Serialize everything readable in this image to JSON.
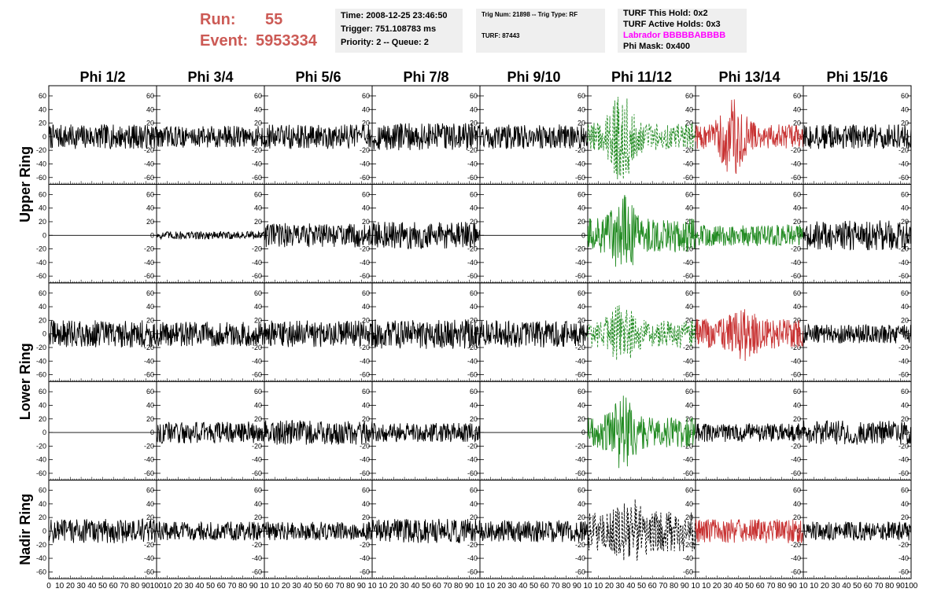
{
  "header": {
    "run_label": "Run:",
    "run_value": "55",
    "event_label": "Event:",
    "event_value": "5953334",
    "run_color": "#cc5a55"
  },
  "info_boxes": {
    "time": "Time: 2008-12-25 23:46:50",
    "trigger": "Trigger: 751.108783 ms",
    "priority": "Priority: 2 -- Queue: 2",
    "trig_num": "Trig Num: 21898 -- Trig Type: RF",
    "turf": "TURF: 87443",
    "turf_this_hold": "TURF This Hold: 0x2",
    "turf_active_holds": "TURF Active Holds: 0x3",
    "labrador": "Labrador BBBBBABBBB",
    "labrador_color": "#ff00ff",
    "phi_mask": "Phi Mask: 0x400"
  },
  "chart_data": {
    "type": "line",
    "column_titles": [
      "Phi 1/2",
      "Phi 3/4",
      "Phi 5/6",
      "Phi 7/8",
      "Phi 9/10",
      "Phi 11/12",
      "Phi 13/14",
      "Phi 15/16"
    ],
    "row_titles": [
      "Upper Ring",
      "Lower Ring",
      "Nadir Ring"
    ],
    "ylim": [
      -70,
      75
    ],
    "xlim": [
      0,
      100
    ],
    "y_tick_labels": [
      "60",
      "40",
      "20",
      "0",
      "-20",
      "-40",
      "-60"
    ],
    "x_tick_labels_first": [
      "0",
      "10",
      "20",
      "30",
      "40",
      "50",
      "60",
      "70",
      "80",
      "90",
      "100"
    ],
    "x_tick_labels_other": [
      "10",
      "20",
      "30",
      "40",
      "50",
      "60",
      "70",
      "80",
      "90",
      "10"
    ],
    "x_tick_labels_last": [
      "10",
      "20",
      "30",
      "40",
      "50",
      "60",
      "70",
      "80",
      "90",
      "100"
    ],
    "colors": {
      "normal": "#000000",
      "triggered": "#228b22",
      "hold": "#c83232"
    },
    "panels": [
      {
        "row": 0,
        "col": 0,
        "amplitude": 18,
        "style": "normal",
        "flat": false,
        "dashed": false
      },
      {
        "row": 0,
        "col": 1,
        "amplitude": 16,
        "style": "normal",
        "flat": false,
        "dashed": false
      },
      {
        "row": 0,
        "col": 2,
        "amplitude": 18,
        "style": "normal",
        "flat": false,
        "dashed": false
      },
      {
        "row": 0,
        "col": 3,
        "amplitude": 20,
        "style": "normal",
        "flat": false,
        "dashed": false
      },
      {
        "row": 0,
        "col": 4,
        "amplitude": 18,
        "style": "normal",
        "flat": false,
        "dashed": false
      },
      {
        "row": 0,
        "col": 5,
        "amplitude": 20,
        "style": "triggered",
        "flat": false,
        "dashed": true,
        "burst_center": 0.32,
        "burst_amp": 70
      },
      {
        "row": 0,
        "col": 6,
        "amplitude": 18,
        "style": "hold",
        "flat": false,
        "dashed": false,
        "burst_center": 0.35,
        "burst_amp": 60
      },
      {
        "row": 0,
        "col": 7,
        "amplitude": 18,
        "style": "normal",
        "flat": false,
        "dashed": false
      },
      {
        "row": 1,
        "col": 0,
        "amplitude": 0,
        "style": "normal",
        "flat": true,
        "dashed": false
      },
      {
        "row": 1,
        "col": 1,
        "amplitude": 6,
        "style": "normal",
        "flat": false,
        "dashed": false
      },
      {
        "row": 1,
        "col": 2,
        "amplitude": 18,
        "style": "normal",
        "flat": false,
        "dashed": false
      },
      {
        "row": 1,
        "col": 3,
        "amplitude": 20,
        "style": "normal",
        "flat": false,
        "dashed": false
      },
      {
        "row": 1,
        "col": 4,
        "amplitude": 0,
        "style": "normal",
        "flat": true,
        "dashed": false
      },
      {
        "row": 1,
        "col": 5,
        "amplitude": 25,
        "style": "triggered",
        "flat": false,
        "dashed": false,
        "burst_center": 0.33,
        "burst_amp": 60
      },
      {
        "row": 1,
        "col": 6,
        "amplitude": 16,
        "style": "triggered",
        "flat": false,
        "dashed": false
      },
      {
        "row": 1,
        "col": 7,
        "amplitude": 22,
        "style": "normal",
        "flat": false,
        "dashed": false
      },
      {
        "row": 2,
        "col": 0,
        "amplitude": 20,
        "style": "normal",
        "flat": false,
        "dashed": false
      },
      {
        "row": 2,
        "col": 1,
        "amplitude": 18,
        "style": "normal",
        "flat": false,
        "dashed": false
      },
      {
        "row": 2,
        "col": 2,
        "amplitude": 20,
        "style": "normal",
        "flat": false,
        "dashed": false
      },
      {
        "row": 2,
        "col": 3,
        "amplitude": 22,
        "style": "normal",
        "flat": false,
        "dashed": false
      },
      {
        "row": 2,
        "col": 4,
        "amplitude": 20,
        "style": "normal",
        "flat": false,
        "dashed": false
      },
      {
        "row": 2,
        "col": 5,
        "amplitude": 20,
        "style": "triggered",
        "flat": false,
        "dashed": true,
        "burst_center": 0.32,
        "burst_amp": 45
      },
      {
        "row": 2,
        "col": 6,
        "amplitude": 22,
        "style": "hold",
        "flat": false,
        "dashed": false,
        "burst_center": 0.45,
        "burst_amp": 40
      },
      {
        "row": 2,
        "col": 7,
        "amplitude": 14,
        "style": "normal",
        "flat": false,
        "dashed": false
      },
      {
        "row": 3,
        "col": 0,
        "amplitude": 0,
        "style": "normal",
        "flat": true,
        "dashed": false
      },
      {
        "row": 3,
        "col": 1,
        "amplitude": 16,
        "style": "normal",
        "flat": false,
        "dashed": false
      },
      {
        "row": 3,
        "col": 2,
        "amplitude": 18,
        "style": "normal",
        "flat": false,
        "dashed": false
      },
      {
        "row": 3,
        "col": 3,
        "amplitude": 14,
        "style": "normal",
        "flat": false,
        "dashed": false
      },
      {
        "row": 3,
        "col": 4,
        "amplitude": 0,
        "style": "normal",
        "flat": true,
        "dashed": false
      },
      {
        "row": 3,
        "col": 5,
        "amplitude": 22,
        "style": "triggered",
        "flat": false,
        "dashed": false,
        "burst_center": 0.32,
        "burst_amp": 55
      },
      {
        "row": 3,
        "col": 6,
        "amplitude": 14,
        "style": "normal",
        "flat": false,
        "dashed": false
      },
      {
        "row": 3,
        "col": 7,
        "amplitude": 18,
        "style": "normal",
        "flat": false,
        "dashed": false
      },
      {
        "row": 4,
        "col": 0,
        "amplitude": 18,
        "style": "normal",
        "flat": false,
        "dashed": false
      },
      {
        "row": 4,
        "col": 1,
        "amplitude": 14,
        "style": "normal",
        "flat": false,
        "dashed": false
      },
      {
        "row": 4,
        "col": 2,
        "amplitude": 14,
        "style": "normal",
        "flat": false,
        "dashed": false
      },
      {
        "row": 4,
        "col": 3,
        "amplitude": 18,
        "style": "normal",
        "flat": false,
        "dashed": false
      },
      {
        "row": 4,
        "col": 4,
        "amplitude": 16,
        "style": "normal",
        "flat": false,
        "dashed": false
      },
      {
        "row": 4,
        "col": 5,
        "amplitude": 30,
        "style": "normal",
        "flat": false,
        "dashed": true,
        "burst_center": 0.4,
        "burst_amp": 50
      },
      {
        "row": 4,
        "col": 6,
        "amplitude": 18,
        "style": "hold",
        "flat": false,
        "dashed": false
      },
      {
        "row": 4,
        "col": 7,
        "amplitude": 14,
        "style": "normal",
        "flat": false,
        "dashed": false
      }
    ]
  }
}
